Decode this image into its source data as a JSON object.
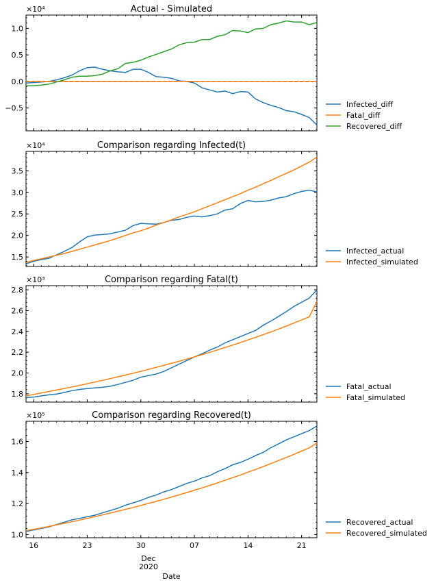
{
  "figure": {
    "xlabel": "Date",
    "x_month_label": "Dec",
    "x_year_label": "2020",
    "x_ticks": [
      {
        "date": "2020-11-16",
        "label": "16"
      },
      {
        "date": "2020-11-23",
        "label": "23"
      },
      {
        "date": "2020-11-30",
        "label": "30"
      },
      {
        "date": "2020-12-07",
        "label": "07"
      },
      {
        "date": "2020-12-14",
        "label": "14"
      },
      {
        "date": "2020-12-21",
        "label": "21"
      }
    ],
    "x_range": [
      "2020-11-15",
      "2020-12-23"
    ]
  },
  "colors": {
    "blue": "#1f77b4",
    "orange": "#ff7f0e",
    "green": "#2ca02c"
  },
  "chart_data": [
    {
      "type": "line",
      "title": "Actual - Simulated",
      "ylabel": "",
      "multiplier_label": "×10⁴",
      "scale": 10000,
      "ylim": [
        -0.93,
        1.25
      ],
      "yticks": [
        -0.5,
        0.0,
        0.5,
        1.0
      ],
      "ytick_labels": [
        "−0.5",
        "0.0",
        "0.5",
        "1.0"
      ],
      "zero_line": true,
      "series": [
        {
          "name": "Infected_diff",
          "color": "#1f77b4",
          "values": [
            -0.03,
            -0.02,
            -0.01,
            0.0,
            0.03,
            0.07,
            0.12,
            0.2,
            0.26,
            0.27,
            0.23,
            0.2,
            0.18,
            0.17,
            0.23,
            0.23,
            0.17,
            0.09,
            0.08,
            0.06,
            0.01,
            0.0,
            -0.03,
            -0.12,
            -0.16,
            -0.2,
            -0.18,
            -0.23,
            -0.19,
            -0.2,
            -0.33,
            -0.4,
            -0.45,
            -0.49,
            -0.55,
            -0.57,
            -0.62,
            -0.68,
            -0.82
          ]
        },
        {
          "name": "Fatal_diff",
          "color": "#ff7f0e",
          "values": [
            -0.004,
            -0.003,
            -0.003,
            -0.002,
            -0.002,
            -0.001,
            -0.001,
            -0.001,
            -0.001,
            0.0,
            0.0,
            0.0,
            0.0,
            0.0,
            0.0,
            0.0,
            0.0,
            0.0,
            0.001,
            0.001,
            0.001,
            0.001,
            0.001,
            0.001,
            0.002,
            0.002,
            0.002,
            0.002,
            0.002,
            0.002,
            0.003,
            0.003,
            0.003,
            0.003,
            0.003,
            0.004,
            0.004,
            0.004,
            0.004
          ]
        },
        {
          "name": "Recovered_diff",
          "color": "#2ca02c",
          "values": [
            -0.08,
            -0.08,
            -0.07,
            -0.05,
            -0.01,
            0.03,
            0.08,
            0.1,
            0.1,
            0.11,
            0.14,
            0.2,
            0.24,
            0.34,
            0.36,
            0.4,
            0.46,
            0.51,
            0.56,
            0.61,
            0.69,
            0.73,
            0.74,
            0.79,
            0.79,
            0.85,
            0.88,
            0.96,
            0.95,
            0.92,
            0.99,
            1.0,
            1.07,
            1.1,
            1.14,
            1.12,
            1.12,
            1.07,
            1.11
          ]
        }
      ],
      "legend": {
        "placement": "right",
        "entries": [
          "Infected_diff",
          "Fatal_diff",
          "Recovered_diff"
        ]
      }
    },
    {
      "type": "line",
      "title": "Comparison regarding Infected(t)",
      "ylabel": "",
      "multiplier_label": "×10⁴",
      "scale": 10000,
      "ylim": [
        1.28,
        3.95
      ],
      "yticks": [
        1.5,
        2.0,
        2.5,
        3.0,
        3.5
      ],
      "ytick_labels": [
        "1.5",
        "2.0",
        "2.5",
        "3.0",
        "3.5"
      ],
      "series": [
        {
          "name": "Infected_actual",
          "color": "#1f77b4",
          "values": [
            1.34,
            1.4,
            1.44,
            1.47,
            1.55,
            1.63,
            1.72,
            1.85,
            1.97,
            2.01,
            2.02,
            2.04,
            2.08,
            2.12,
            2.23,
            2.28,
            2.27,
            2.26,
            2.3,
            2.35,
            2.37,
            2.42,
            2.45,
            2.43,
            2.46,
            2.5,
            2.59,
            2.62,
            2.74,
            2.81,
            2.78,
            2.79,
            2.82,
            2.87,
            2.9,
            2.97,
            3.02,
            3.05,
            3.01
          ]
        },
        {
          "name": "Infected_simulated",
          "color": "#ff7f0e",
          "values": [
            1.37,
            1.42,
            1.46,
            1.5,
            1.54,
            1.58,
            1.63,
            1.68,
            1.73,
            1.78,
            1.83,
            1.88,
            1.94,
            2.0,
            2.06,
            2.11,
            2.17,
            2.24,
            2.3,
            2.36,
            2.43,
            2.49,
            2.55,
            2.62,
            2.69,
            2.76,
            2.83,
            2.9,
            2.97,
            3.05,
            3.12,
            3.2,
            3.28,
            3.36,
            3.44,
            3.52,
            3.61,
            3.7,
            3.82
          ]
        }
      ],
      "legend": {
        "placement": "right",
        "entries": [
          "Infected_actual",
          "Infected_simulated"
        ]
      }
    },
    {
      "type": "line",
      "title": "Comparison regarding Fatal(t)",
      "ylabel": "",
      "multiplier_label": "×10³",
      "scale": 1000,
      "ylim": [
        1.72,
        2.84
      ],
      "yticks": [
        1.8,
        2.0,
        2.2,
        2.4,
        2.6,
        2.8
      ],
      "ytick_labels": [
        "1.8",
        "2.0",
        "2.2",
        "2.4",
        "2.6",
        "2.8"
      ],
      "series": [
        {
          "name": "Fatal_actual",
          "color": "#1f77b4",
          "values": [
            1.765,
            1.768,
            1.78,
            1.79,
            1.798,
            1.812,
            1.83,
            1.842,
            1.85,
            1.857,
            1.862,
            1.872,
            1.89,
            1.91,
            1.93,
            1.96,
            1.975,
            1.99,
            2.015,
            2.05,
            2.085,
            2.12,
            2.155,
            2.185,
            2.22,
            2.25,
            2.29,
            2.32,
            2.35,
            2.38,
            2.41,
            2.46,
            2.5,
            2.545,
            2.59,
            2.64,
            2.68,
            2.72,
            2.8
          ]
        },
        {
          "name": "Fatal_simulated",
          "color": "#ff7f0e",
          "values": [
            1.78,
            1.794,
            1.808,
            1.822,
            1.836,
            1.851,
            1.866,
            1.881,
            1.897,
            1.913,
            1.929,
            1.946,
            1.963,
            1.98,
            1.998,
            2.016,
            2.035,
            2.054,
            2.073,
            2.093,
            2.113,
            2.134,
            2.155,
            2.177,
            2.199,
            2.222,
            2.245,
            2.269,
            2.293,
            2.318,
            2.343,
            2.369,
            2.396,
            2.423,
            2.451,
            2.48,
            2.51,
            2.54,
            2.69
          ]
        }
      ],
      "legend": {
        "placement": "right",
        "entries": [
          "Fatal_actual",
          "Fatal_simulated"
        ]
      }
    },
    {
      "type": "line",
      "title": "Comparison regarding Recovered(t)",
      "ylabel": "",
      "multiplier_label": "×10⁵",
      "scale": 100000,
      "ylim": [
        0.98,
        1.73
      ],
      "yticks": [
        1.0,
        1.2,
        1.4,
        1.6
      ],
      "ytick_labels": [
        "1.0",
        "1.2",
        "1.4",
        "1.6"
      ],
      "series": [
        {
          "name": "Recovered_actual",
          "color": "#1f77b4",
          "values": [
            1.02,
            1.03,
            1.04,
            1.05,
            1.065,
            1.08,
            1.095,
            1.105,
            1.115,
            1.125,
            1.14,
            1.155,
            1.17,
            1.19,
            1.205,
            1.22,
            1.24,
            1.255,
            1.275,
            1.29,
            1.31,
            1.33,
            1.345,
            1.365,
            1.38,
            1.405,
            1.425,
            1.45,
            1.465,
            1.485,
            1.51,
            1.53,
            1.56,
            1.585,
            1.61,
            1.63,
            1.65,
            1.67,
            1.7
          ]
        },
        {
          "name": "Recovered_simulated",
          "color": "#ff7f0e",
          "values": [
            1.025,
            1.034,
            1.043,
            1.053,
            1.063,
            1.073,
            1.083,
            1.094,
            1.105,
            1.116,
            1.127,
            1.139,
            1.151,
            1.163,
            1.175,
            1.188,
            1.201,
            1.214,
            1.228,
            1.242,
            1.256,
            1.271,
            1.286,
            1.301,
            1.317,
            1.333,
            1.35,
            1.367,
            1.384,
            1.402,
            1.42,
            1.439,
            1.458,
            1.477,
            1.497,
            1.517,
            1.538,
            1.559,
            1.59
          ]
        }
      ],
      "legend": {
        "placement": "right",
        "entries": [
          "Recovered_actual",
          "Recovered_simulated"
        ]
      }
    }
  ]
}
